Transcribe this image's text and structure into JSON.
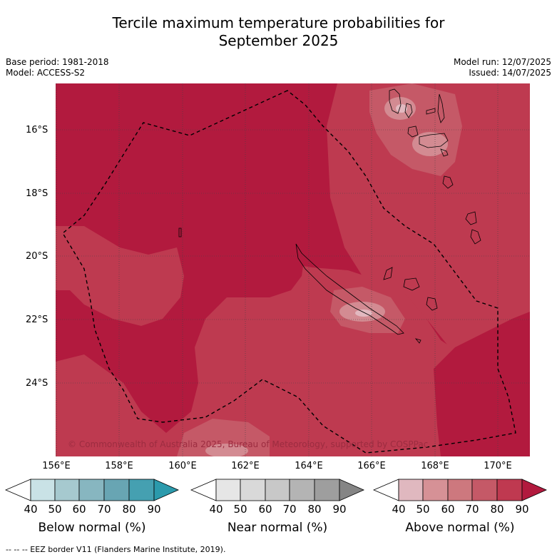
{
  "title_line1": "Tercile maximum temperature probabilities for",
  "title_line2": "September 2025",
  "meta_left": [
    "Base period: 1981-2018",
    "Model: ACCESS-S2"
  ],
  "meta_right": [
    "Model run: 12/07/2025",
    "Issued: 14/07/2025"
  ],
  "lat_labels": [
    "16°S",
    "18°S",
    "20°S",
    "22°S",
    "24°S"
  ],
  "lon_labels": [
    "156°E",
    "158°E",
    "160°E",
    "162°E",
    "164°E",
    "166°E",
    "168°E",
    "170°E"
  ],
  "copyright": "© Commonwealth of Australia 2025, Bureau of Meteorology, supported by COSPPac",
  "colorbars": [
    {
      "title": "Below normal (%)",
      "ticks": [
        "40",
        "50",
        "60",
        "70",
        "80",
        "90"
      ],
      "colors": [
        "#ffffff",
        "#c9e2e6",
        "#a6c9cf",
        "#87b6c0",
        "#68a5b3",
        "#45a0b1",
        "#2b9aac"
      ]
    },
    {
      "title": "Near normal (%)",
      "ticks": [
        "40",
        "50",
        "60",
        "70",
        "80",
        "90"
      ],
      "colors": [
        "#ffffff",
        "#e6e6e6",
        "#d9d9d9",
        "#c8c8c8",
        "#b4b4b4",
        "#9e9e9e",
        "#858585"
      ]
    },
    {
      "title": "Above normal (%)",
      "ticks": [
        "40",
        "50",
        "60",
        "70",
        "80",
        "90"
      ],
      "colors": [
        "#ffffff",
        "#e0b8bf",
        "#d69196",
        "#cd787e",
        "#c55967",
        "#bf3950",
        "#b21a3e"
      ]
    }
  ],
  "footnote": "-- -- -- EEZ border V11 (Flanders Marine Institute, 2019).",
  "colors": {
    "prob_90": "#b21a3e",
    "prob_80": "#be3a50",
    "prob_70": "#c55967",
    "prob_60": "#d38b92",
    "prob_50": "#e2b9c0"
  }
}
